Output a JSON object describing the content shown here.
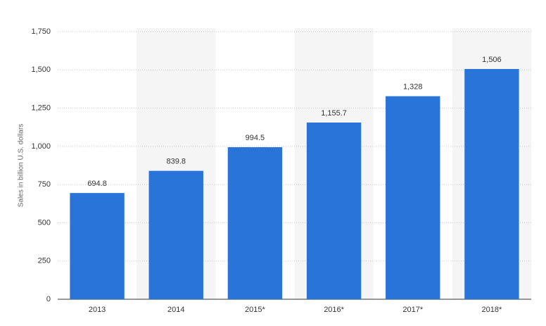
{
  "chart_data": {
    "type": "bar",
    "y_label": "Sales in billion U.S. dollars",
    "categories": [
      "2013",
      "2014",
      "2015*",
      "2016*",
      "2017*",
      "2018*"
    ],
    "values": [
      694.8,
      839.8,
      994.5,
      1155.7,
      1328,
      1506
    ],
    "value_labels": [
      "694.8",
      "839.8",
      "994.5",
      "1,155.7",
      "1,328",
      "1,506"
    ],
    "color": "#2874d9",
    "ylim": [
      0,
      1750
    ],
    "yticks": [
      0,
      250,
      500,
      750,
      {
        "value": 1000,
        "label": "1,000"
      },
      {
        "value": 1250,
        "label": "1,250"
      },
      {
        "value": 1500,
        "label": "1,500"
      },
      {
        "value": 1750,
        "label": "1,750"
      }
    ],
    "grid": true
  }
}
